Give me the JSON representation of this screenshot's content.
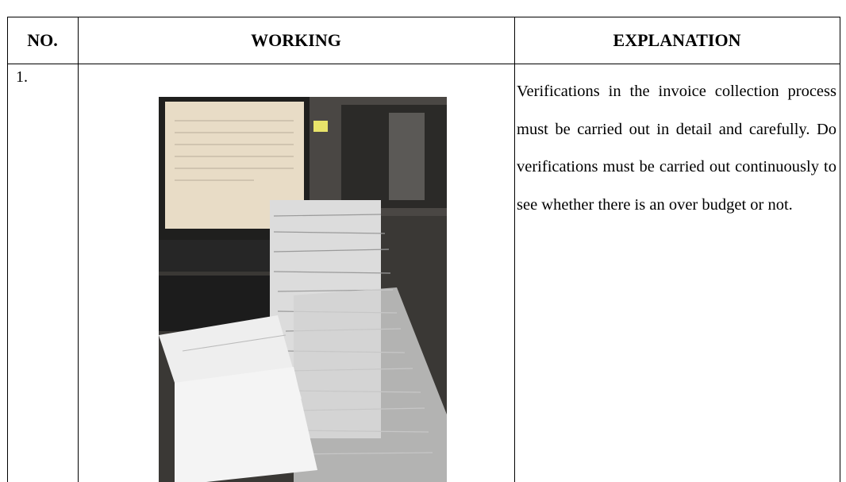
{
  "table": {
    "headers": [
      "NO.",
      "WORKING",
      "EXPLANATION"
    ],
    "rows": [
      {
        "number": "1.",
        "explanation": "Verifications in the invoice collection process must be carried out in detail and carefully. Do verifications must be carried out continuously to see whether there is an over budget or not."
      }
    ]
  }
}
